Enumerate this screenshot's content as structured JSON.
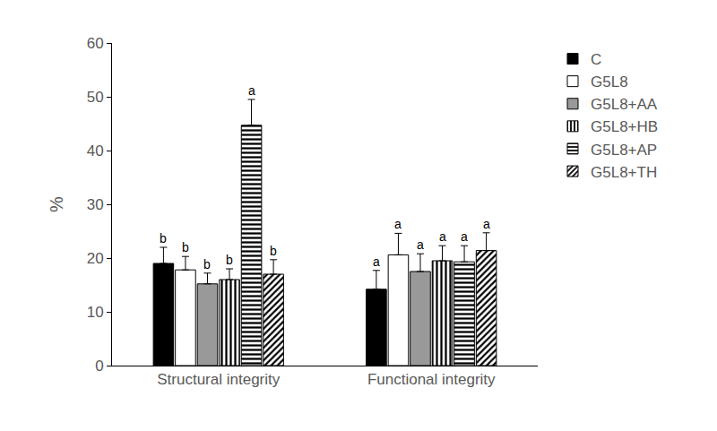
{
  "chart_data": {
    "type": "bar",
    "categories": [
      "Structural integrity",
      "Functional integrity"
    ],
    "y_label": "%",
    "ylim": [
      0,
      60
    ],
    "yticks": [
      0,
      10,
      20,
      30,
      40,
      50,
      60
    ],
    "grid": false,
    "legend": "right",
    "series": [
      {
        "name": "C",
        "color": "#000000",
        "values": [
          19,
          14.2
        ],
        "errors": [
          3,
          3.5
        ],
        "letters": [
          "b",
          "a"
        ]
      },
      {
        "name": "G5L8",
        "color": "#ffffff",
        "values": [
          17.8,
          20.6
        ],
        "errors": [
          2.5,
          4
        ],
        "letters": [
          "b",
          "a"
        ]
      },
      {
        "name": "G5L8+AA",
        "color": "#999999",
        "values": [
          15.2,
          17.5
        ],
        "errors": [
          2,
          3.3
        ],
        "letters": [
          "b",
          "a"
        ]
      },
      {
        "name": "G5L8+HB",
        "color": "#ffffff",
        "values": [
          16,
          19.5
        ],
        "errors": [
          2,
          2.8
        ],
        "letters": [
          "b",
          "a"
        ]
      },
      {
        "name": "G5L8+AP",
        "color": "#ffffff",
        "values": [
          44.7,
          19.3
        ],
        "errors": [
          4.8,
          3
        ],
        "letters": [
          "a",
          "a"
        ]
      },
      {
        "name": "G5L8+TH",
        "color": "#ffffff",
        "values": [
          17,
          21.4
        ],
        "errors": [
          2.7,
          3.3
        ],
        "letters": [
          "b",
          "a"
        ]
      }
    ]
  }
}
